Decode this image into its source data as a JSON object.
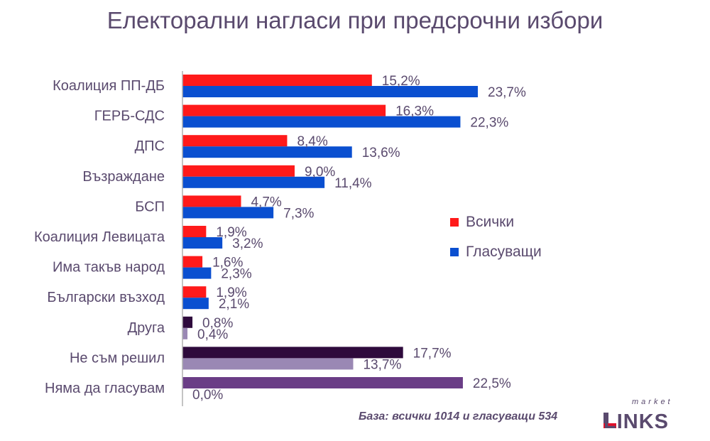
{
  "title": "Електорални нагласи при предсрочни избори",
  "base_note": "База: всички 1014 и гласуващи 534",
  "logo": {
    "top": "market",
    "main": "LINKS"
  },
  "colors": {
    "all": "#ff1a1a",
    "voters": "#0a4fd0",
    "other_all": "#2e0a3c",
    "other_voters": "#9a88b4",
    "wont_vote": "#6a3d86",
    "axis": "#b0b0b0",
    "text": "#5a4a6e"
  },
  "legend": [
    {
      "label": "Всички",
      "color": "#ff1a1a"
    },
    {
      "label": "Гласуващи",
      "color": "#0a4fd0"
    }
  ],
  "chart_data": {
    "type": "bar",
    "orientation": "horizontal",
    "categories": [
      "Коалиция ПП-ДБ",
      "ГЕРБ-СДС",
      "ДПС",
      "Възраждане",
      "БСП",
      "Коалиция Левицата",
      "Има такъв народ",
      "Български възход",
      "Друга",
      "Не съм решил",
      "Няма да гласувам"
    ],
    "series": [
      {
        "name": "Всички",
        "values": [
          15.2,
          16.3,
          8.4,
          9.0,
          4.7,
          1.9,
          1.6,
          1.9,
          0.8,
          17.7,
          22.5
        ],
        "labels": [
          "15,2%",
          "16,3%",
          "8,4%",
          "9,0%",
          "4,7%",
          "1,9%",
          "1,6%",
          "1,9%",
          "0,8%",
          "17,7%",
          "22,5%"
        ]
      },
      {
        "name": "Гласуващи",
        "values": [
          23.7,
          22.3,
          13.6,
          11.4,
          7.3,
          3.2,
          2.3,
          2.1,
          0.4,
          13.7,
          0.0
        ],
        "labels": [
          "23,7%",
          "22,3%",
          "13,6%",
          "11,4%",
          "7,3%",
          "3,2%",
          "2,3%",
          "2,1%",
          "0,4%",
          "13,7%",
          "0,0%"
        ]
      }
    ],
    "xlim": [
      0,
      25
    ],
    "grid": false,
    "legend_position": "right"
  }
}
